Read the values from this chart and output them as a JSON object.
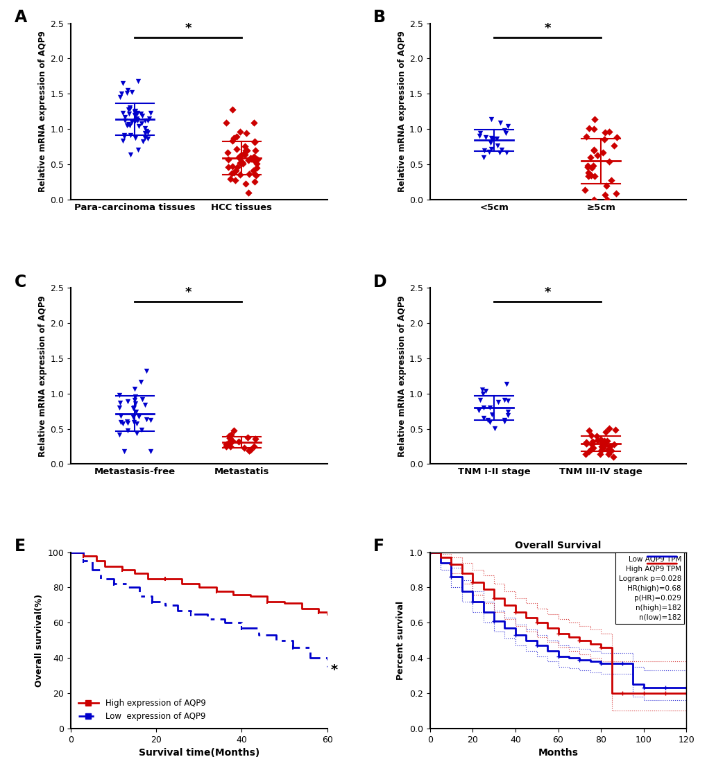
{
  "panel_A": {
    "group1_label": "Para-carcinoma tissues",
    "group2_label": "HCC tissues",
    "group1_mean": 1.08,
    "group1_sd": 0.22,
    "group2_mean": 0.63,
    "group2_sd": 0.3,
    "group1_color": "#0000CC",
    "group2_color": "#CC0000",
    "group1_marker": "v",
    "group2_marker": "D",
    "n1": 50,
    "n2": 50,
    "ylim": [
      0.0,
      2.5
    ],
    "yticks": [
      0.0,
      0.5,
      1.0,
      1.5,
      2.0,
      2.5
    ],
    "ylabel": "Relative mRNA expression of AQP9",
    "sig_y": 2.3,
    "panel_label": "A",
    "seed1": 101,
    "seed2": 202
  },
  "panel_B": {
    "group1_label": "<5cm",
    "group2_label": "≥5cm",
    "group1_mean": 0.84,
    "group1_sd": 0.15,
    "group2_mean": 0.47,
    "group2_sd": 0.4,
    "group1_color": "#0000CC",
    "group2_color": "#CC0000",
    "group1_marker": "v",
    "group2_marker": "D",
    "n1": 20,
    "n2": 30,
    "ylim": [
      0.0,
      2.5
    ],
    "yticks": [
      0.0,
      0.5,
      1.0,
      1.5,
      2.0,
      2.5
    ],
    "ylabel": "Relative mRNA expression of AQP9",
    "sig_y": 2.3,
    "panel_label": "B",
    "seed1": 303,
    "seed2": 404
  },
  "panel_C": {
    "group1_label": "Metastasis-free",
    "group2_label": "Metastatis",
    "group1_mean": 0.76,
    "group1_sd": 0.28,
    "group2_mean": 0.3,
    "group2_sd": 0.07,
    "group1_color": "#0000CC",
    "group2_color": "#CC0000",
    "group1_marker": "v",
    "group2_marker": "D",
    "n1": 32,
    "n2": 18,
    "ylim": [
      0.0,
      2.5
    ],
    "yticks": [
      0.0,
      0.5,
      1.0,
      1.5,
      2.0,
      2.5
    ],
    "ylabel": "Relative mRNA expression of AQP9",
    "sig_y": 2.3,
    "panel_label": "C",
    "seed1": 505,
    "seed2": 606
  },
  "panel_D": {
    "group1_label": "TNM I-II stage",
    "group2_label": "TNM III-IV stage",
    "group1_mean": 0.84,
    "group1_sd": 0.18,
    "group2_mean": 0.3,
    "group2_sd": 0.1,
    "group1_color": "#0000CC",
    "group2_color": "#CC0000",
    "group1_marker": "v",
    "group2_marker": "D",
    "n1": 20,
    "n2": 30,
    "ylim": [
      0.0,
      2.5
    ],
    "yticks": [
      0.0,
      0.5,
      1.0,
      1.5,
      2.0,
      2.5
    ],
    "ylabel": "Relative mRNA expression of AQP9",
    "sig_y": 2.3,
    "panel_label": "D",
    "seed1": 707,
    "seed2": 808
  },
  "panel_E": {
    "panel_label": "E",
    "xlabel": "Survival time(Months)",
    "ylabel": "Overall survival(%)",
    "high_label": "High expression of AQP9",
    "low_label": "Low  expression of AQP9",
    "high_color": "#CC0000",
    "low_color": "#0000CC",
    "xlim": [
      0,
      60
    ],
    "ylim": [
      0,
      100
    ],
    "xticks": [
      0,
      20,
      40,
      60
    ],
    "yticks": [
      0,
      20,
      40,
      60,
      80,
      100
    ],
    "high_times": [
      0,
      3,
      6,
      8,
      12,
      15,
      18,
      22,
      26,
      30,
      34,
      38,
      42,
      46,
      50,
      54,
      58,
      60
    ],
    "high_survival": [
      100,
      98,
      95,
      92,
      90,
      88,
      85,
      85,
      82,
      80,
      78,
      76,
      75,
      72,
      71,
      68,
      66,
      65
    ],
    "low_times": [
      0,
      3,
      5,
      7,
      10,
      13,
      16,
      19,
      22,
      25,
      28,
      32,
      36,
      40,
      44,
      48,
      52,
      56,
      60
    ],
    "low_survival": [
      100,
      95,
      90,
      85,
      82,
      80,
      75,
      72,
      70,
      67,
      65,
      62,
      60,
      57,
      53,
      50,
      46,
      40,
      35
    ],
    "sig_x": 60,
    "sig_y": 33
  },
  "panel_F": {
    "panel_label": "F",
    "title": "Overall Survival",
    "xlabel": "Months",
    "ylabel": "Percent survival",
    "high_label": "High AQP9 TPM",
    "low_label": "Low AQP9 TPM",
    "high_color": "#CC0000",
    "low_color": "#0000CC",
    "xlim": [
      0,
      120
    ],
    "ylim": [
      0.0,
      1.0
    ],
    "xticks": [
      0,
      20,
      40,
      60,
      80,
      100,
      120
    ],
    "yticks": [
      0.0,
      0.2,
      0.4,
      0.6,
      0.8,
      1.0
    ],
    "annotation_lines": [
      "Logrank p=0.028",
      "HR(high)=0.68",
      "p(HR)=0.029",
      "n(high)=182",
      "n(low)=182"
    ],
    "high_times": [
      0,
      5,
      10,
      15,
      20,
      25,
      30,
      35,
      40,
      45,
      50,
      55,
      60,
      65,
      70,
      75,
      80,
      85,
      90,
      95,
      100,
      105,
      110,
      115,
      120
    ],
    "high_survival": [
      1.0,
      0.97,
      0.93,
      0.88,
      0.83,
      0.79,
      0.74,
      0.7,
      0.66,
      0.63,
      0.6,
      0.57,
      0.54,
      0.52,
      0.5,
      0.48,
      0.46,
      0.2,
      0.2,
      0.2,
      0.2,
      0.2,
      0.2,
      0.2,
      0.2
    ],
    "high_ci_up": [
      1.0,
      0.99,
      0.97,
      0.94,
      0.9,
      0.87,
      0.82,
      0.78,
      0.74,
      0.71,
      0.68,
      0.65,
      0.62,
      0.6,
      0.58,
      0.56,
      0.54,
      0.38,
      0.38,
      0.38,
      0.38,
      0.38,
      0.38,
      0.38,
      0.38
    ],
    "high_ci_lo": [
      1.0,
      0.94,
      0.88,
      0.82,
      0.76,
      0.71,
      0.66,
      0.62,
      0.58,
      0.55,
      0.52,
      0.49,
      0.46,
      0.44,
      0.42,
      0.4,
      0.38,
      0.1,
      0.1,
      0.1,
      0.1,
      0.1,
      0.1,
      0.1,
      0.1
    ],
    "low_times": [
      0,
      5,
      10,
      15,
      20,
      25,
      30,
      35,
      40,
      45,
      50,
      55,
      60,
      65,
      70,
      75,
      80,
      85,
      90,
      95,
      100,
      105,
      110,
      115,
      120
    ],
    "low_survival": [
      1.0,
      0.94,
      0.86,
      0.78,
      0.72,
      0.66,
      0.61,
      0.57,
      0.53,
      0.5,
      0.47,
      0.44,
      0.41,
      0.4,
      0.39,
      0.38,
      0.37,
      0.37,
      0.37,
      0.25,
      0.23,
      0.23,
      0.23,
      0.23,
      0.23
    ],
    "low_ci_up": [
      1.0,
      0.97,
      0.91,
      0.84,
      0.78,
      0.72,
      0.67,
      0.63,
      0.59,
      0.56,
      0.53,
      0.5,
      0.47,
      0.46,
      0.45,
      0.44,
      0.43,
      0.43,
      0.43,
      0.35,
      0.33,
      0.33,
      0.33,
      0.33,
      0.33
    ],
    "low_ci_lo": [
      1.0,
      0.9,
      0.8,
      0.72,
      0.66,
      0.6,
      0.55,
      0.51,
      0.47,
      0.44,
      0.41,
      0.38,
      0.35,
      0.34,
      0.33,
      0.32,
      0.31,
      0.31,
      0.31,
      0.18,
      0.16,
      0.16,
      0.16,
      0.16,
      0.16
    ]
  },
  "bg_color": "#FFFFFF",
  "scatter_size": 28
}
